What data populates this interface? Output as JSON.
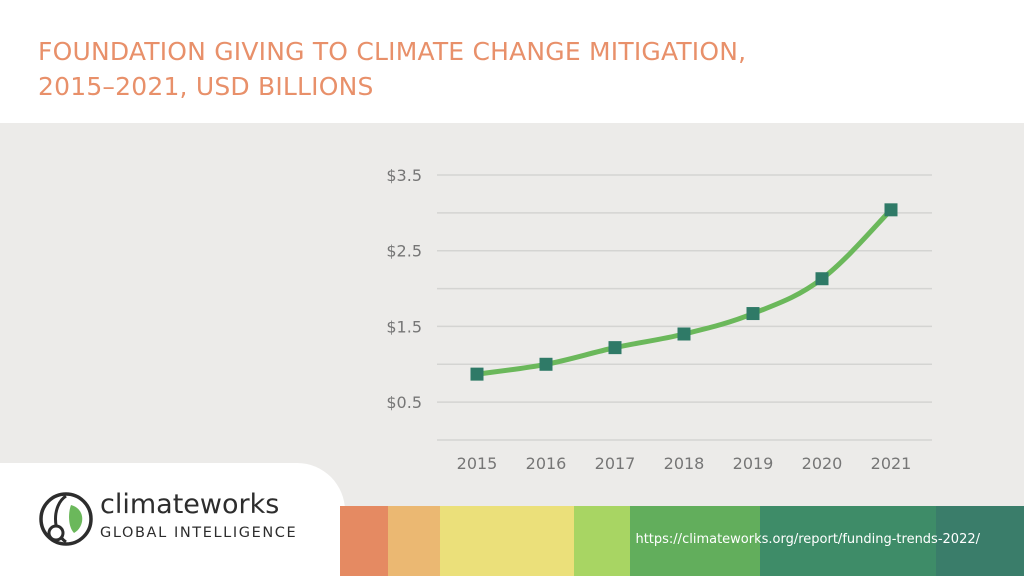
{
  "title_lines": [
    "FOUNDATION GIVING TO CLIMATE CHANGE MITIGATION,",
    "2015–2021, USD BILLIONS"
  ],
  "colors": {
    "title": "#e8906a",
    "panel": "#ecebe9",
    "line": "#6bb85b",
    "marker": "#2f7a67",
    "grid": "#d4d4d2",
    "axis_text": "#767676"
  },
  "chart_data": {
    "type": "line",
    "title": "FOUNDATION GIVING TO CLIMATE CHANGE MITIGATION, 2015–2021, USD BILLIONS",
    "categories": [
      "2015",
      "2016",
      "2017",
      "2018",
      "2019",
      "2020",
      "2021"
    ],
    "series": [
      {
        "values": [
          0.87,
          1.0,
          1.22,
          1.4,
          1.67,
          2.13,
          3.04
        ]
      }
    ],
    "y_ticks": [
      {
        "value": 3.5,
        "label": "$3.5"
      },
      {
        "value": 2.5,
        "label": "$2.5"
      },
      {
        "value": 1.5,
        "label": "$1.5"
      },
      {
        "value": 0.5,
        "label": "$0.5"
      }
    ],
    "grid_values": [
      0,
      0.5,
      1.0,
      1.5,
      2.0,
      2.5,
      3.0,
      3.5
    ],
    "ylim": [
      0,
      3.5
    ],
    "grid": true,
    "legend": "none"
  },
  "logo": {
    "name": "climateworks",
    "tagline": "GLOBAL INTELLIGENCE"
  },
  "color_bar": [
    "#e58a62",
    "#ebb872",
    "#ebe07a",
    "#a8d563",
    "#62ae5c",
    "#3e8c68",
    "#3a7d6a"
  ],
  "source_url": "https://climateworks.org/report/funding-trends-2022/"
}
